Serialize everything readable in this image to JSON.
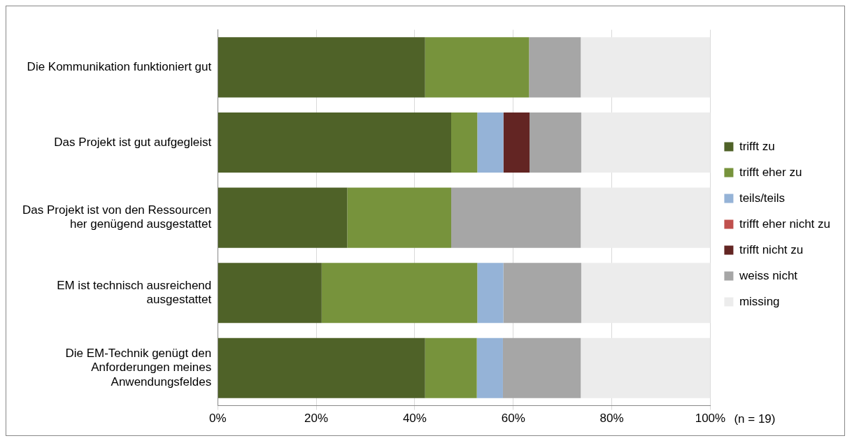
{
  "chart_data": {
    "type": "bar",
    "orientation": "horizontal",
    "stacked": true,
    "categories": [
      "Die Kommunikation funktioniert gut",
      "Das Projekt ist gut aufgegleist",
      "Das Projekt ist von den Ressourcen her genügend ausgestattet",
      "EM ist technisch ausreichend ausgestattet",
      "Die EM-Technik genügt den Anforderungen meines Anwendungsfeldes"
    ],
    "series": [
      {
        "name": "trifft zu",
        "color": "#4f6228",
        "values": [
          42.1,
          47.4,
          26.3,
          21.1,
          42.1
        ]
      },
      {
        "name": "trifft eher zu",
        "color": "#77933c",
        "values": [
          21.1,
          5.3,
          21.1,
          31.6,
          10.5
        ]
      },
      {
        "name": "teils/teils",
        "color": "#95b3d7",
        "values": [
          0,
          5.3,
          0,
          5.3,
          5.3
        ]
      },
      {
        "name": "trifft eher nicht zu",
        "color": "#c0504d",
        "values": [
          0,
          0,
          0,
          0,
          0
        ]
      },
      {
        "name": "trifft nicht zu",
        "color": "#632523",
        "values": [
          0,
          5.3,
          0,
          0,
          0
        ]
      },
      {
        "name": "weiss nicht",
        "color": "#a6a6a6",
        "values": [
          10.5,
          10.5,
          26.3,
          15.8,
          15.8
        ]
      },
      {
        "name": "missing",
        "color": "#ececec",
        "values": [
          26.3,
          26.3,
          26.3,
          26.3,
          26.3
        ]
      }
    ],
    "xlim": [
      0,
      100
    ],
    "xticks": [
      {
        "value": 0,
        "label": "0%"
      },
      {
        "value": 20,
        "label": "20%"
      },
      {
        "value": 40,
        "label": "40%"
      },
      {
        "value": 60,
        "label": "60%"
      },
      {
        "value": 80,
        "label": "80%"
      },
      {
        "value": 100,
        "label": "100%"
      }
    ],
    "grid": "x",
    "legend": "right",
    "annotations": [
      "(n = 19)"
    ]
  }
}
